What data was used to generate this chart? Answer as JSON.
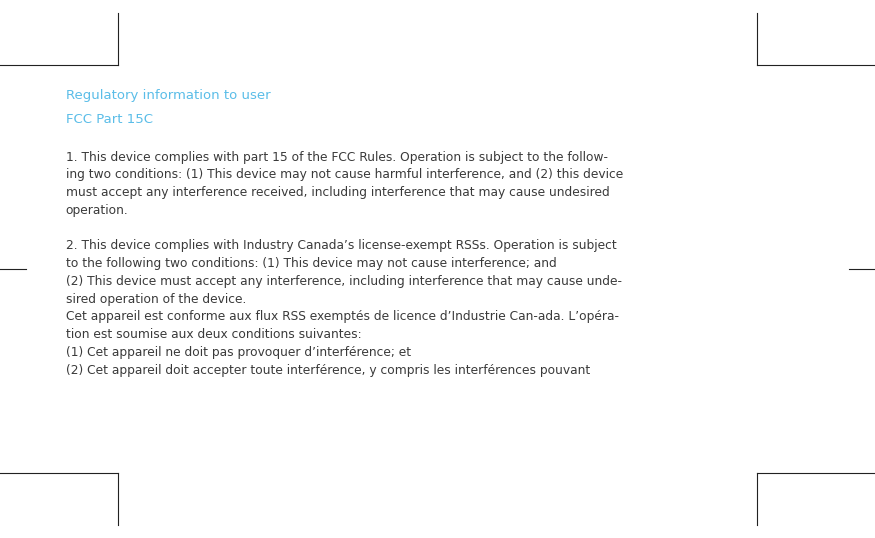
{
  "bg_color": "#ffffff",
  "heading_color": "#5abde8",
  "text_color": "#3a3a3a",
  "heading_line1": "Regulatory information to user",
  "heading_line2": "FCC Part 15C",
  "heading_fontsize": 9.5,
  "body_fontsize": 8.8,
  "lines": [
    "1. This device complies with part 15 of the FCC Rules. Operation is subject to the follow-",
    "ing two conditions: (1) This device may not cause harmful interference, and (2) this device",
    "must accept any interference received, including interference that may cause undesired",
    "operation.",
    "",
    "2. This device complies with Industry Canada’s license-exempt RSSs. Operation is subject",
    "to the following two conditions: (1) This device may not cause interference; and",
    "(2) This device must accept any interference, including interference that may cause unde-",
    "sired operation of the device.",
    "Cet appareil est conforme aux flux RSS exemptés de licence d’Industrie Can-ada. L’opéra-",
    "tion est soumise aux deux conditions suivantes:",
    "(1) Cet appareil ne doit pas provoquer d’interférence; et",
    "(2) Cet appareil doit accepter toute interférence, y compris les interférences pouvant"
  ],
  "corner_color": "#222222",
  "fig_width": 8.75,
  "fig_height": 5.38,
  "dpi": 100
}
